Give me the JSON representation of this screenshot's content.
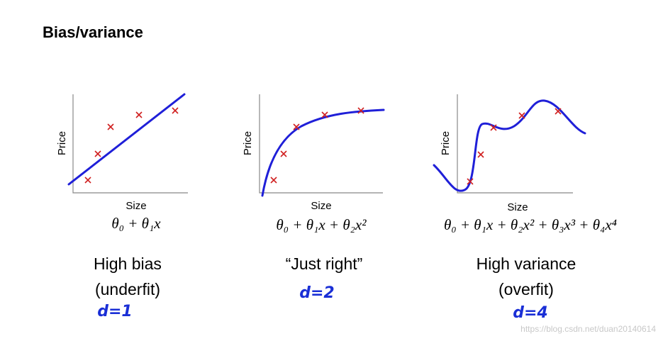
{
  "header": {
    "title": "Bias/variance"
  },
  "panels": [
    {
      "y_label": "Price",
      "x_label": "Size",
      "formula": "θ₀ + θ₁x",
      "caption": [
        "High bias",
        "(underfit)"
      ],
      "note": "d=1"
    },
    {
      "y_label": "Price",
      "x_label": "Size",
      "formula": "θ₀ + θ₁x + θ₂x²",
      "caption": [
        "“Just right”"
      ],
      "note": "d=2"
    },
    {
      "y_label": "Price",
      "x_label": "Size",
      "formula": "θ₀ + θ₁x + θ₂x² + θ₃x³ + θ₄x⁴",
      "caption": [
        "High variance",
        "(overfit)"
      ],
      "note": "d=4"
    }
  ],
  "watermark": "https://blog.csdn.net/duan20140614"
}
